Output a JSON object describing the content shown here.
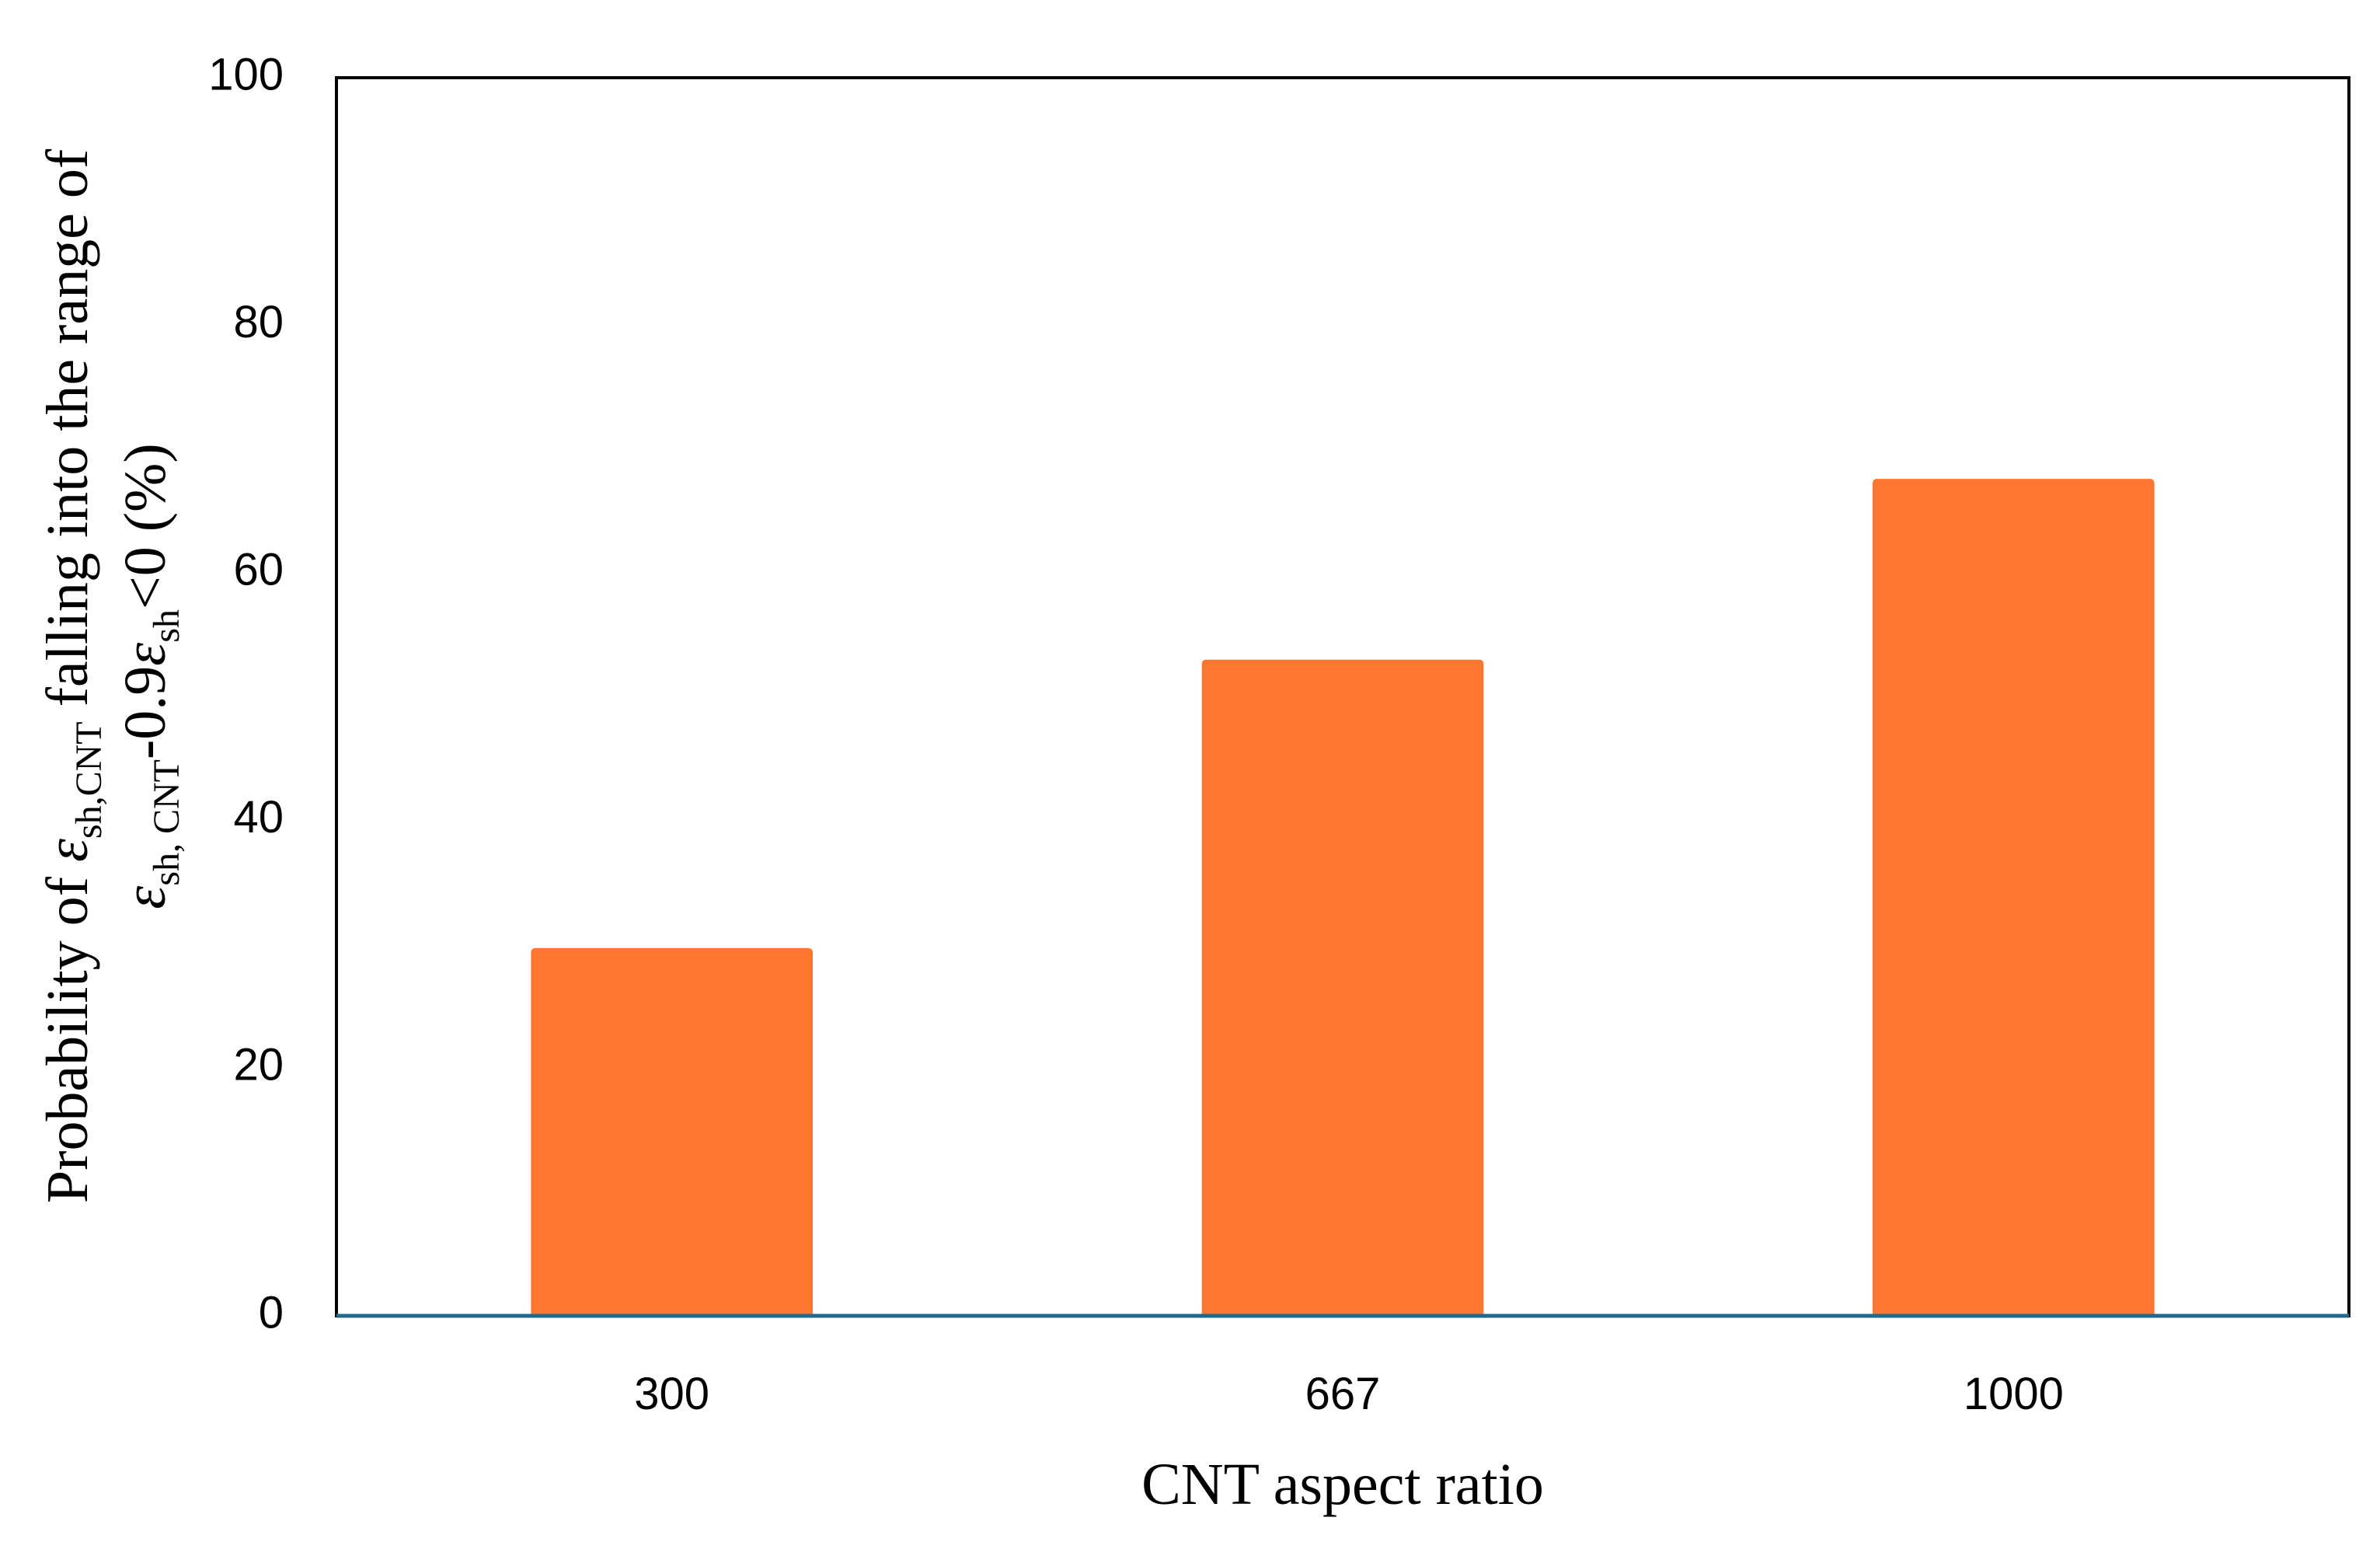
{
  "chart_data": {
    "type": "bar",
    "categories": [
      "300",
      "667",
      "1000"
    ],
    "values": [
      29.7,
      53.0,
      67.6
    ],
    "xlabel": "CNT aspect ratio",
    "ylabel": {
      "line1": {
        "prefix": "Probability of ",
        "symbol": "ε",
        "symbol_sub": "sh,CNT",
        "suffix": " falling into the range of"
      },
      "line2": {
        "symbol": "ε",
        "symbol_sub": "sh, CNT",
        "middle": "-0.9",
        "symbol2": "ε",
        "symbol2_sub": "sh",
        "suffix": "<0 (%)"
      }
    },
    "ylim": [
      0,
      100
    ],
    "yticks": [
      "0",
      "20",
      "40",
      "60",
      "80",
      "100"
    ],
    "grid": false,
    "legend": "none",
    "colors": {
      "bar": "#FF7730",
      "baseline": "#1F6A8C",
      "frame": "#000000"
    }
  }
}
